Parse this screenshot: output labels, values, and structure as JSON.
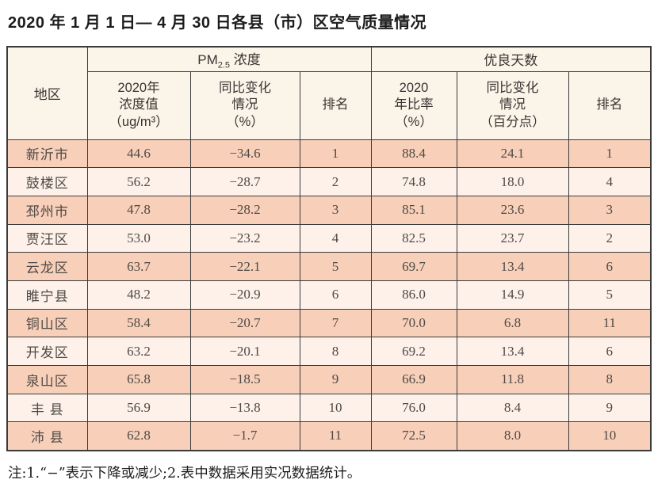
{
  "page": {
    "title": "2020 年 1 月 1 日— 4 月 30 日各县（市）区空气质量情况",
    "footnote": "注:1.“−”表示下降或减少;2.表中数据采用实况数据统计。"
  },
  "colors": {
    "row_odd": "#f8cfb9",
    "row_even": "#fdf1ea",
    "header_bg": "#fbf4e9",
    "border": "#3b3b3b"
  },
  "table": {
    "region_header": "地区",
    "group_pm25": {
      "prefix": "PM",
      "subscript": "2.5",
      "suffix": " 浓度"
    },
    "group_good_days": "优良天数",
    "sub_headers": [
      "2020年\n浓度值\n（ug/m³）",
      "同比变化\n情况\n（%）",
      "排名",
      "2020\n年比率\n（%）",
      "同比变化\n情况\n（百分点）",
      "排名"
    ],
    "rows": [
      [
        "新沂市",
        "44.6",
        "−34.6",
        "1",
        "88.4",
        "24.1",
        "1"
      ],
      [
        "鼓楼区",
        "56.2",
        "−28.7",
        "2",
        "74.8",
        "18.0",
        "4"
      ],
      [
        "邳州市",
        "47.8",
        "−28.2",
        "3",
        "85.1",
        "23.6",
        "3"
      ],
      [
        "贾汪区",
        "53.0",
        "−23.2",
        "4",
        "82.5",
        "23.7",
        "2"
      ],
      [
        "云龙区",
        "63.7",
        "−22.1",
        "5",
        "69.7",
        "13.4",
        "6"
      ],
      [
        "睢宁县",
        "48.2",
        "−20.9",
        "6",
        "86.0",
        "14.9",
        "5"
      ],
      [
        "铜山区",
        "58.4",
        "−20.7",
        "7",
        "70.0",
        "6.8",
        "11"
      ],
      [
        "开发区",
        "63.2",
        "−20.1",
        "8",
        "69.2",
        "13.4",
        "6"
      ],
      [
        "泉山区",
        "65.8",
        "−18.5",
        "9",
        "66.9",
        "11.8",
        "8"
      ],
      [
        "丰 县",
        "56.9",
        "−13.8",
        "10",
        "76.0",
        "8.4",
        "9"
      ],
      [
        "沛 县",
        "62.8",
        "−1.7",
        "11",
        "72.5",
        "8.0",
        "10"
      ]
    ]
  }
}
